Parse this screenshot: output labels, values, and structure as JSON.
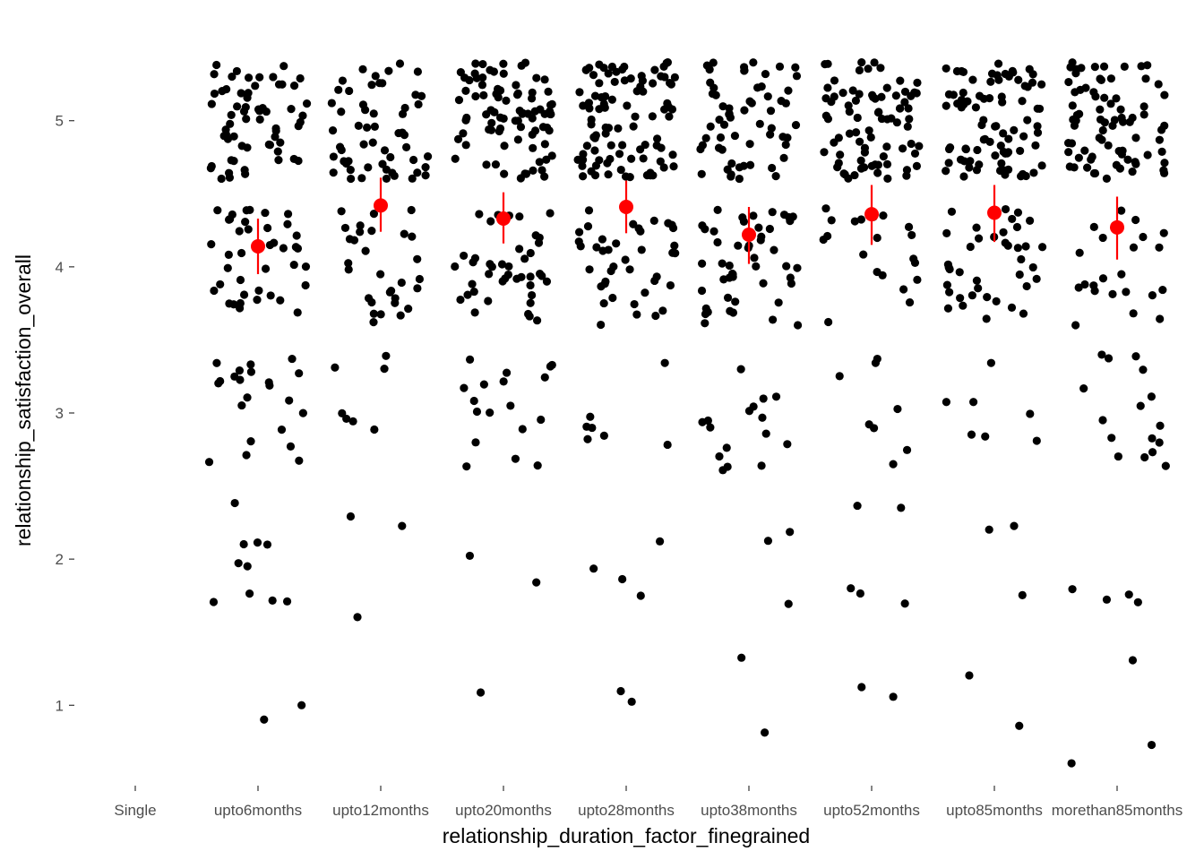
{
  "chart_data": {
    "type": "scatter",
    "xlabel": "relationship_duration_factor_finegrained",
    "ylabel": "relationship_satisfaction_overall",
    "categories": [
      "Single",
      "upto6months",
      "upto12months",
      "upto20months",
      "upto28months",
      "upto38months",
      "upto52months",
      "upto85months",
      "morethan85months"
    ],
    "ylim": [
      0.45,
      5.55
    ],
    "yticks": [
      1,
      2,
      3,
      4,
      5
    ],
    "grid": false,
    "colors": {
      "points": "#000000",
      "summary": "#ff0000",
      "axis_text": "#4d4d4d",
      "tick": "#333333"
    },
    "summary_series": {
      "name": "",
      "points": [
        {
          "category": "upto6months",
          "mean": 4.14,
          "lower": 3.95,
          "upper": 4.33
        },
        {
          "category": "upto12months",
          "mean": 4.42,
          "lower": 4.24,
          "upper": 4.61
        },
        {
          "category": "upto20months",
          "mean": 4.33,
          "lower": 4.16,
          "upper": 4.51
        },
        {
          "category": "upto28months",
          "mean": 4.41,
          "lower": 4.23,
          "upper": 4.59
        },
        {
          "category": "upto38months",
          "mean": 4.22,
          "lower": 4.02,
          "upper": 4.41
        },
        {
          "category": "upto52months",
          "mean": 4.36,
          "lower": 4.15,
          "upper": 4.56
        },
        {
          "category": "upto85months",
          "mean": 4.37,
          "lower": 4.17,
          "upper": 4.56
        },
        {
          "category": "morethan85months",
          "mean": 4.27,
          "lower": 4.05,
          "upper": 4.48
        }
      ]
    },
    "raw_series": {
      "name": "",
      "jitter_note": "",
      "groups": [
        {
          "category": "upto6months",
          "counts": {
            "1": 2,
            "2": 10,
            "3": 22,
            "4": 40,
            "5": 62
          }
        },
        {
          "category": "upto12months",
          "counts": {
            "1": 0,
            "2": 3,
            "3": 7,
            "4": 30,
            "5": 55
          }
        },
        {
          "category": "upto20months",
          "counts": {
            "1": 1,
            "2": 2,
            "3": 18,
            "4": 42,
            "5": 85
          }
        },
        {
          "category": "upto28months",
          "counts": {
            "1": 2,
            "2": 4,
            "3": 7,
            "4": 40,
            "5": 95
          }
        },
        {
          "category": "upto38months",
          "counts": {
            "1": 2,
            "2": 3,
            "3": 16,
            "4": 48,
            "5": 60
          }
        },
        {
          "category": "upto52months",
          "counts": {
            "1": 2,
            "2": 5,
            "3": 8,
            "4": 20,
            "5": 80
          }
        },
        {
          "category": "upto85months",
          "counts": {
            "1": 2,
            "2": 3,
            "3": 7,
            "4": 40,
            "5": 85
          }
        },
        {
          "category": "morethan85months",
          "counts": {
            "1": 3,
            "2": 4,
            "3": 16,
            "4": 22,
            "5": 78
          }
        }
      ]
    }
  }
}
